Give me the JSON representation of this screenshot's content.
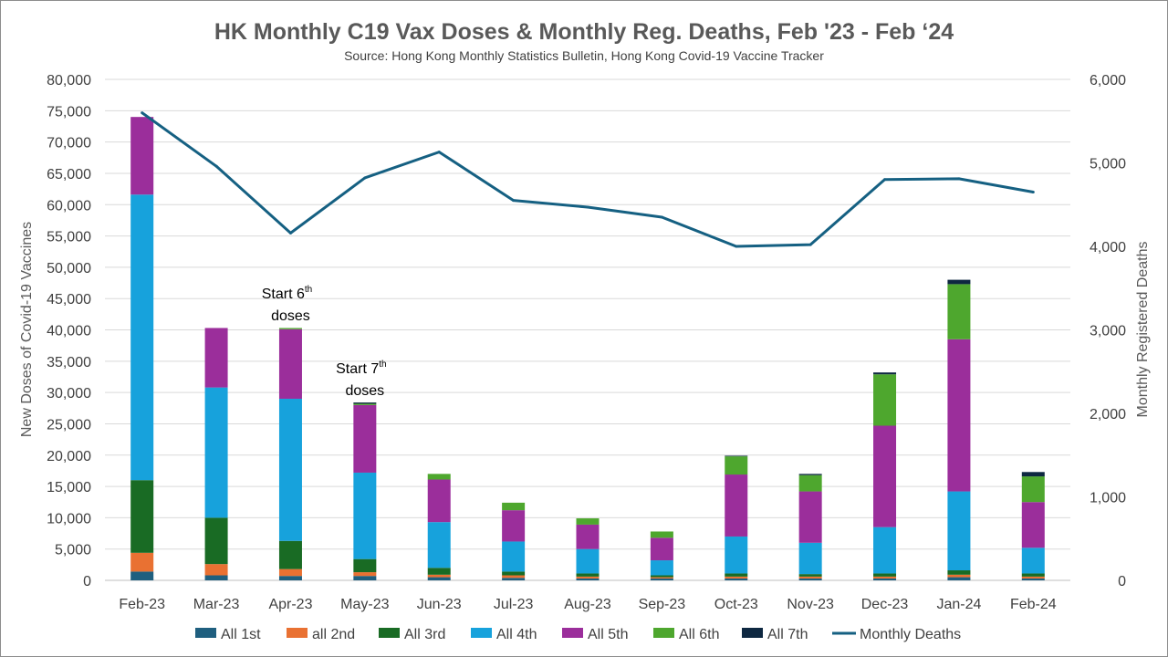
{
  "chart_data": {
    "type": "bar",
    "stacked": true,
    "title": "HK Monthly C19 Vax Doses & Monthly Reg. Deaths, Feb '23 - Feb ‘24",
    "subtitle": "Source: Hong Kong Monthly Statistics Bulletin, Hong Kong Covid-19 Vaccine Tracker",
    "ylabel": "New Doses of Covid-19 Vaccines",
    "y2label": "Monthly Registered Deaths",
    "ylim": [
      0,
      80000
    ],
    "y2lim": [
      0,
      6000
    ],
    "yticks": [
      "0",
      "5,000",
      "10,000",
      "15,000",
      "20,000",
      "25,000",
      "30,000",
      "35,000",
      "40,000",
      "45,000",
      "50,000",
      "55,000",
      "60,000",
      "65,000",
      "70,000",
      "75,000",
      "80,000"
    ],
    "y2ticks": [
      "0",
      "1,000",
      "2,000",
      "3,000",
      "4,000",
      "5,000",
      "6,000"
    ],
    "grid": true,
    "legend_position": "bottom",
    "categories": [
      "Feb-23",
      "Mar-23",
      "Apr-23",
      "May-23",
      "Jun-23",
      "Jul-23",
      "Aug-23",
      "Sep-23",
      "Oct-23",
      "Nov-23",
      "Dec-23",
      "Jan-24",
      "Feb-24"
    ],
    "series": [
      {
        "name": "All 1st",
        "color": "#1f5f7f",
        "values": [
          1400,
          800,
          700,
          700,
          500,
          400,
          300,
          300,
          300,
          300,
          300,
          500,
          300
        ]
      },
      {
        "name": "all 2nd",
        "color": "#e97132",
        "values": [
          3000,
          1800,
          1100,
          600,
          400,
          400,
          300,
          200,
          300,
          300,
          300,
          400,
          300
        ]
      },
      {
        "name": "All 3rd",
        "color": "#196b24",
        "values": [
          11600,
          7400,
          4500,
          2100,
          1100,
          600,
          500,
          300,
          500,
          400,
          500,
          700,
          500
        ]
      },
      {
        "name": "All 4th",
        "color": "#17a2dc",
        "values": [
          45600,
          20800,
          22700,
          13800,
          7300,
          4800,
          3900,
          2400,
          5900,
          5000,
          7400,
          12600,
          4100
        ]
      },
      {
        "name": "All 5th",
        "color": "#9b2e9b",
        "values": [
          12400,
          9500,
          11100,
          10800,
          6800,
          5000,
          3900,
          3600,
          9900,
          8200,
          16200,
          24300,
          7300
        ]
      },
      {
        "name": "All 6th",
        "color": "#4ea72e",
        "values": [
          0,
          0,
          200,
          200,
          900,
          1200,
          1000,
          1000,
          2900,
          2600,
          8200,
          8800,
          4100
        ]
      },
      {
        "name": "All 7th",
        "color": "#0e2841",
        "values": [
          0,
          0,
          0,
          200,
          0,
          0,
          0,
          0,
          100,
          200,
          300,
          700,
          700
        ]
      }
    ],
    "line": {
      "name": "Monthly Deaths",
      "color": "#156082",
      "values": [
        5600,
        4960,
        4160,
        4820,
        5130,
        4550,
        4470,
        4350,
        4000,
        4020,
        4800,
        4810,
        4650
      ]
    },
    "annotations": [
      {
        "category": "Apr-23",
        "text": "Start 6",
        "sup": "th",
        "text2": "doses"
      },
      {
        "category": "May-23",
        "text": "Start 7",
        "sup": "th",
        "text2": "doses"
      }
    ]
  }
}
